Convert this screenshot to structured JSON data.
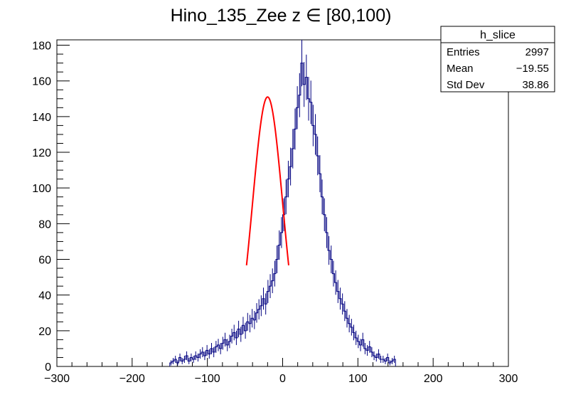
{
  "chart_data": {
    "type": "histogram",
    "title": "Hino_135_Zee z  ∈ [80,100)",
    "xlim": [
      -300,
      300
    ],
    "ylim": [
      0,
      183
    ],
    "x_ticks": [
      -300,
      -200,
      -100,
      0,
      100,
      200,
      300
    ],
    "y_ticks": [
      0,
      20,
      40,
      60,
      80,
      100,
      120,
      140,
      160,
      180
    ],
    "x_tick_labels": [
      "−300",
      "−200",
      "−100",
      "0",
      "100",
      "200",
      "300"
    ],
    "y_tick_labels": [
      "0",
      "20",
      "40",
      "60",
      "80",
      "100",
      "120",
      "140",
      "160",
      "180"
    ],
    "grid": false,
    "histogram_color": "#000080",
    "fit_color": "#ff0000",
    "stats": {
      "title": "h_slice",
      "rows": [
        {
          "label": "Entries",
          "value": "2997"
        },
        {
          "label": "Mean",
          "value": "−19.55"
        },
        {
          "label": "Std Dev",
          "value": "38.86"
        }
      ]
    },
    "bins": {
      "x_start": -150,
      "bin_width": 3,
      "counts": [
        2,
        3,
        4,
        2,
        5,
        3,
        4,
        6,
        3,
        5,
        4,
        6,
        5,
        7,
        8,
        6,
        9,
        7,
        10,
        8,
        11,
        12,
        10,
        13,
        15,
        12,
        14,
        17,
        19,
        16,
        21,
        18,
        23,
        20,
        25,
        24,
        27,
        26,
        30,
        32,
        34,
        38,
        35,
        42,
        45,
        48,
        52,
        60,
        68,
        75,
        85,
        95,
        105,
        112,
        122,
        133,
        145,
        152,
        170,
        158,
        162,
        150,
        148,
        135,
        130,
        118,
        108,
        95,
        85,
        75,
        65,
        60,
        52,
        47,
        42,
        38,
        35,
        31,
        27,
        24,
        22,
        19,
        16,
        14,
        12,
        15,
        10,
        9,
        11,
        8,
        6,
        5,
        7,
        4,
        4,
        3,
        5,
        2,
        3,
        4
      ]
    },
    "fit": {
      "mu": -20,
      "sigma": 20,
      "peak": 151,
      "x_range": [
        -48,
        8
      ]
    }
  }
}
